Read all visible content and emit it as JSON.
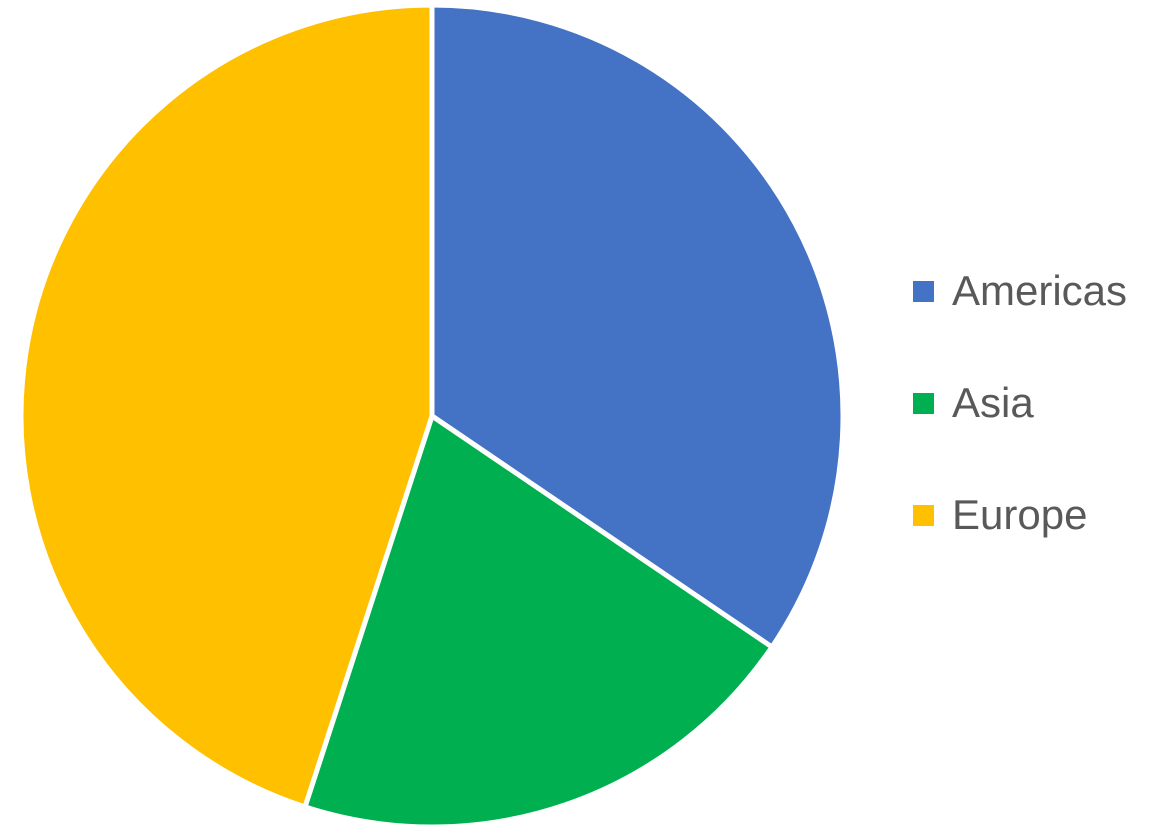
{
  "chart_data": {
    "type": "pie",
    "title": "",
    "categories": [
      "Americas",
      "Asia",
      "Europe"
    ],
    "values": [
      34.5,
      20.5,
      45.0
    ],
    "colors": [
      "#4472C4",
      "#00B050",
      "#FFC000"
    ],
    "start_angle_deg": 0,
    "direction": "clockwise",
    "legend_position": "right"
  }
}
